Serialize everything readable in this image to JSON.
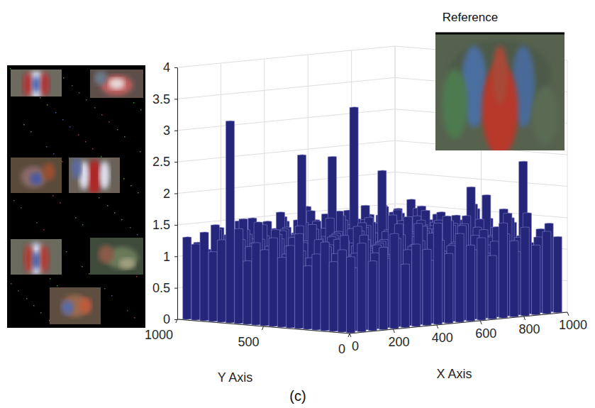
{
  "chart_data": {
    "type": "bar3d",
    "caption": "(c)",
    "inset_title": "Reference",
    "x_label": "X Axis",
    "y_label": "Y Axis",
    "x": [
      25,
      75,
      125,
      175,
      225,
      275,
      325,
      375,
      425,
      475,
      525,
      575,
      625,
      675,
      725,
      775,
      825,
      875,
      925,
      975
    ],
    "y": [
      25,
      75,
      125,
      175,
      225,
      275,
      325,
      375,
      425,
      475,
      525,
      575,
      625,
      675,
      725,
      775,
      825,
      875,
      925,
      975
    ],
    "values": [
      [
        1.2,
        1.4,
        1.1,
        1.3,
        1.5,
        1.0,
        1.3,
        1.2,
        1.6,
        1.1,
        1.4,
        1.2,
        1.3,
        1.0,
        1.5,
        1.2,
        1.4,
        1.1,
        1.3,
        1.2
      ],
      [
        1.3,
        1.0,
        1.5,
        1.2,
        1.1,
        1.4,
        1.2,
        1.6,
        1.0,
        1.3,
        1.2,
        1.5,
        1.1,
        1.4,
        1.2,
        1.3,
        1.0,
        1.6,
        1.2,
        1.4
      ],
      [
        1.1,
        1.5,
        1.2,
        1.4,
        1.3,
        1.1,
        1.6,
        1.0,
        1.3,
        1.4,
        1.1,
        1.2,
        1.5,
        1.3,
        1.0,
        1.4,
        1.6,
        1.2,
        1.1,
        1.3
      ],
      [
        1.4,
        1.2,
        1.0,
        1.6,
        1.2,
        1.3,
        1.1,
        1.4,
        1.2,
        1.5,
        1.3,
        1.0,
        1.2,
        1.6,
        1.4,
        1.1,
        1.3,
        1.5,
        1.2,
        1.0
      ],
      [
        1.2,
        1.3,
        1.4,
        1.1,
        1.5,
        1.2,
        1.3,
        1.7,
        1.1,
        1.2,
        1.4,
        1.3,
        1.6,
        1.1,
        1.2,
        1.5,
        1.2,
        1.3,
        1.4,
        2.35
      ],
      [
        1.0,
        1.4,
        1.3,
        1.2,
        1.1,
        1.6,
        1.2,
        1.3,
        1.5,
        1.0,
        1.3,
        1.4,
        1.2,
        1.5,
        1.1,
        2.0,
        1.3,
        1.2,
        1.6,
        1.1
      ],
      [
        1.5,
        1.1,
        1.2,
        1.4,
        1.3,
        1.0,
        1.5,
        1.2,
        1.4,
        1.3,
        1.6,
        1.1,
        1.3,
        1.2,
        1.4,
        1.2,
        1.7,
        1.1,
        1.3,
        1.5
      ],
      [
        1.3,
        1.2,
        1.6,
        1.0,
        1.4,
        1.3,
        1.2,
        1.5,
        1.1,
        1.4,
        1.2,
        1.3,
        1.5,
        1.0,
        1.3,
        1.4,
        1.2,
        1.6,
        1.8,
        1.2
      ],
      [
        1.1,
        1.4,
        1.3,
        1.5,
        1.2,
        1.4,
        1.0,
        1.3,
        1.6,
        1.2,
        1.1,
        1.5,
        1.3,
        1.4,
        1.2,
        1.0,
        1.5,
        1.3,
        1.2,
        1.4
      ],
      [
        1.4,
        1.0,
        1.2,
        1.3,
        1.6,
        1.1,
        1.4,
        1.2,
        1.3,
        1.5,
        2.3,
        1.2,
        1.4,
        1.1,
        1.6,
        1.3,
        1.2,
        1.4,
        1.0,
        1.3
      ],
      [
        1.2,
        1.5,
        1.1,
        1.4,
        1.2,
        1.3,
        1.6,
        1.0,
        1.4,
        1.2,
        1.3,
        1.7,
        1.1,
        1.3,
        1.5,
        1.2,
        1.4,
        1.1,
        1.3,
        1.5
      ],
      [
        1.3,
        1.1,
        1.4,
        1.2,
        1.5,
        1.0,
        1.3,
        2.55,
        1.2,
        3.3,
        1.4,
        1.1,
        1.3,
        1.6,
        1.2,
        1.4,
        1.3,
        1.5,
        1.1,
        1.2
      ],
      [
        1.0,
        1.6,
        1.2,
        1.3,
        1.1,
        2.6,
        1.2,
        1.4,
        1.3,
        1.1,
        1.5,
        1.2,
        1.4,
        1.2,
        1.3,
        1.1,
        1.6,
        1.2,
        1.4,
        1.3
      ],
      [
        1.5,
        1.2,
        1.3,
        1.1,
        1.4,
        1.2,
        1.5,
        1.1,
        1.6,
        1.3,
        1.2,
        1.4,
        1.0,
        1.5,
        1.3,
        1.2,
        1.1,
        1.4,
        1.3,
        1.2
      ],
      [
        3.2,
        1.3,
        1.1,
        1.5,
        1.2,
        1.4,
        1.0,
        1.3,
        1.2,
        1.4,
        1.6,
        1.1,
        1.3,
        1.2,
        1.4,
        1.5,
        1.2,
        1.3,
        1.1,
        1.4
      ],
      [
        1.3,
        1.4,
        1.6,
        1.2,
        1.3,
        1.1,
        1.4,
        1.5,
        1.2,
        1.0,
        1.3,
        1.5,
        1.2,
        1.4,
        1.1,
        1.3,
        1.4,
        1.2,
        1.5,
        1.3
      ],
      [
        1.1,
        1.2,
        1.3,
        1.4,
        1.0,
        1.5,
        1.3,
        1.2,
        1.4,
        1.6,
        1.2,
        1.3,
        1.4,
        1.1,
        1.6,
        1.2,
        1.3,
        1.5,
        1.2,
        1.1
      ],
      [
        1.4,
        1.5,
        1.2,
        1.0,
        1.3,
        1.4,
        1.2,
        1.6,
        1.1,
        1.3,
        1.4,
        1.2,
        1.5,
        1.3,
        1.2,
        1.4,
        1.0,
        1.3,
        1.4,
        1.6
      ],
      [
        1.2,
        1.1,
        1.4,
        1.3,
        1.5,
        1.2,
        1.1,
        1.3,
        1.5,
        1.2,
        1.0,
        1.4,
        1.3,
        1.2,
        1.5,
        1.1,
        1.4,
        1.2,
        1.3,
        1.2
      ],
      [
        1.3,
        1.2,
        1.0,
        1.4,
        1.2,
        1.3,
        1.5,
        1.1,
        1.3,
        1.4,
        1.2,
        1.6,
        1.1,
        1.3,
        1.2,
        1.4,
        1.3,
        1.1,
        1.5,
        1.3
      ]
    ],
    "xlim": [
      0,
      1000
    ],
    "xticks": [
      0,
      200,
      400,
      600,
      800,
      1000
    ],
    "ylim": [
      0,
      1000
    ],
    "yticks": [
      0,
      500,
      1000
    ],
    "zlim": [
      0,
      4
    ],
    "zticks": [
      0,
      0.5,
      1,
      1.5,
      2,
      2.5,
      3,
      3.5,
      4
    ],
    "grid": true,
    "color": "#25257a"
  }
}
